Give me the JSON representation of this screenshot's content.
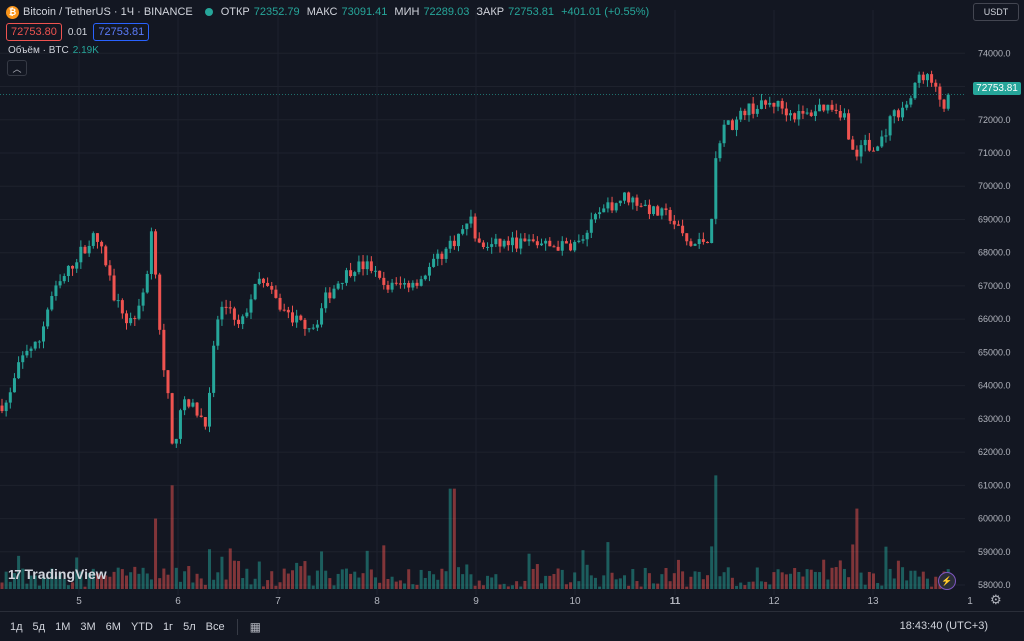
{
  "header": {
    "symbol": "Bitcoin / TetherUS · 1Ч · BINANCE",
    "logo_icon": "bitcoin-icon",
    "o_label": "ОТКР",
    "o_value": "72352.79",
    "h_label": "МАКС",
    "h_value": "73091.41",
    "l_label": "МИН",
    "l_value": "72289.03",
    "c_label": "ЗАКР",
    "c_value": "72753.81",
    "change": "+401.01 (+0.55%)"
  },
  "order": {
    "sell": "72753.80",
    "spread": "0.01",
    "buy": "72753.81"
  },
  "volume": {
    "label": "Объём · BTC",
    "value": "2.19K"
  },
  "currency": "USDT",
  "last_price": "72753.81",
  "watermark": "TradingView",
  "toolbar": {
    "timeframes": [
      "1д",
      "5д",
      "1М",
      "3М",
      "6М",
      "YTD",
      "1г",
      "5л",
      "Все"
    ],
    "clock": "18:43:40 (UTC+3)"
  },
  "colors": {
    "up": "#26a69a",
    "down": "#ef5350",
    "background": "#131722",
    "grid": "#1e222d"
  },
  "chart_data": {
    "type": "candlestick",
    "y_ticks": [
      58000,
      59000,
      60000,
      61000,
      62000,
      63000,
      64000,
      65000,
      66000,
      67000,
      68000,
      69000,
      70000,
      71000,
      72000,
      73000,
      74000
    ],
    "ylim": [
      57700,
      74400
    ],
    "x_ticks": [
      "5",
      "6",
      "7",
      "8",
      "9",
      "10",
      "11",
      "12",
      "13",
      "1"
    ],
    "anchors": [
      [
        0,
        63400
      ],
      [
        8,
        63500
      ],
      [
        18,
        64500
      ],
      [
        26,
        65100
      ],
      [
        38,
        65200
      ],
      [
        50,
        66600
      ],
      [
        65,
        67300
      ],
      [
        80,
        68000
      ],
      [
        95,
        68500
      ],
      [
        105,
        67800
      ],
      [
        115,
        66600
      ],
      [
        128,
        65900
      ],
      [
        140,
        66300
      ],
      [
        148,
        67600
      ],
      [
        152,
        68800
      ],
      [
        157,
        67000
      ],
      [
        162,
        64700
      ],
      [
        168,
        63600
      ],
      [
        173,
        61800
      ],
      [
        180,
        63400
      ],
      [
        190,
        63400
      ],
      [
        198,
        63200
      ],
      [
        205,
        62900
      ],
      [
        210,
        63700
      ],
      [
        215,
        65600
      ],
      [
        220,
        66300
      ],
      [
        230,
        66400
      ],
      [
        240,
        65700
      ],
      [
        250,
        66600
      ],
      [
        262,
        67300
      ],
      [
        272,
        66700
      ],
      [
        285,
        66200
      ],
      [
        300,
        65900
      ],
      [
        315,
        65800
      ],
      [
        325,
        66600
      ],
      [
        340,
        67200
      ],
      [
        355,
        67600
      ],
      [
        370,
        67600
      ],
      [
        382,
        67000
      ],
      [
        398,
        67000
      ],
      [
        420,
        67200
      ],
      [
        440,
        67900
      ],
      [
        455,
        68400
      ],
      [
        462,
        68600
      ],
      [
        470,
        69100
      ],
      [
        478,
        68200
      ],
      [
        490,
        68200
      ],
      [
        505,
        68300
      ],
      [
        520,
        68300
      ],
      [
        535,
        68300
      ],
      [
        550,
        68200
      ],
      [
        565,
        68200
      ],
      [
        580,
        68300
      ],
      [
        595,
        69000
      ],
      [
        610,
        69400
      ],
      [
        625,
        69700
      ],
      [
        640,
        69500
      ],
      [
        655,
        69200
      ],
      [
        670,
        69100
      ],
      [
        680,
        68600
      ],
      [
        690,
        68200
      ],
      [
        700,
        68300
      ],
      [
        710,
        68500
      ],
      [
        716,
        70800
      ],
      [
        722,
        71800
      ],
      [
        735,
        71900
      ],
      [
        745,
        72300
      ],
      [
        760,
        72400
      ],
      [
        775,
        72500
      ],
      [
        790,
        72200
      ],
      [
        805,
        72100
      ],
      [
        820,
        72400
      ],
      [
        835,
        72400
      ],
      [
        845,
        72100
      ],
      [
        855,
        70700
      ],
      [
        862,
        71400
      ],
      [
        872,
        71000
      ],
      [
        880,
        71300
      ],
      [
        892,
        72100
      ],
      [
        905,
        72400
      ],
      [
        912,
        72700
      ],
      [
        920,
        73400
      ],
      [
        930,
        73200
      ],
      [
        938,
        72700
      ],
      [
        945,
        72400
      ],
      [
        950,
        72753.81
      ]
    ],
    "volume_peaks": [
      [
        156,
        60000
      ],
      [
        173,
        61000
      ],
      [
        452,
        60900
      ],
      [
        715,
        61300
      ],
      [
        857,
        60300
      ]
    ]
  }
}
